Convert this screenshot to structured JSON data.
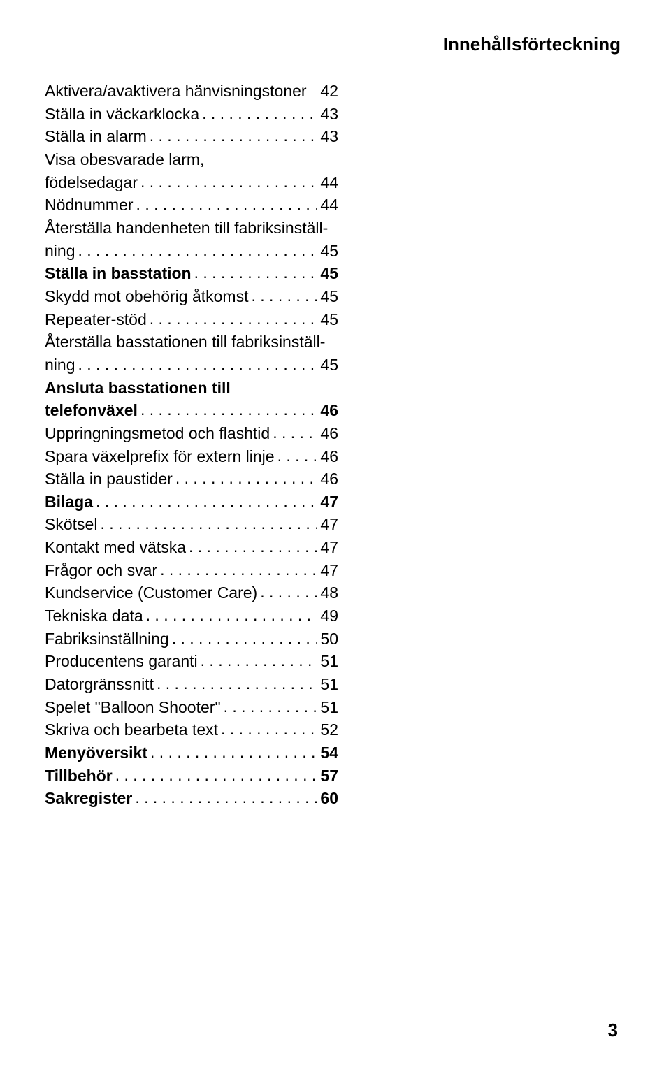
{
  "header": "Innehållsförteckning",
  "pageNumber": "3",
  "toc": [
    {
      "label": "Aktivera/avaktivera hänvisningstoner",
      "page": "42",
      "bold": false,
      "short": true
    },
    {
      "label": "Ställa in väckarklocka",
      "page": "43",
      "bold": false
    },
    {
      "label": "Ställa in alarm",
      "page": "43",
      "bold": false
    },
    {
      "labelLines": [
        "Visa obesvarade larm,",
        "födelsedagar"
      ],
      "page": "44",
      "bold": false
    },
    {
      "label": "Nödnummer",
      "page": "44",
      "bold": false
    },
    {
      "labelLines": [
        "Återställa handenheten till fabriksinställ-",
        "ning"
      ],
      "page": "45",
      "bold": false
    },
    {
      "label": "Ställa in basstation",
      "page": "45",
      "bold": true
    },
    {
      "label": "Skydd mot obehörig åtkomst",
      "page": "45",
      "bold": false
    },
    {
      "label": "Repeater-stöd",
      "page": "45",
      "bold": false
    },
    {
      "labelLines": [
        "Återställa basstationen till fabriksinställ-",
        "ning"
      ],
      "page": "45",
      "bold": false
    },
    {
      "labelLines": [
        "Ansluta basstationen till",
        "telefonväxel"
      ],
      "page": "46",
      "bold": true
    },
    {
      "label": "Uppringningsmetod och flashtid",
      "page": "46",
      "bold": false
    },
    {
      "label": "Spara växelprefix för extern linje",
      "page": "46",
      "bold": false
    },
    {
      "label": "Ställa in paustider",
      "page": "46",
      "bold": false
    },
    {
      "label": "Bilaga",
      "page": "47",
      "bold": true
    },
    {
      "label": "Skötsel",
      "page": "47",
      "bold": false
    },
    {
      "label": "Kontakt med vätska",
      "page": "47",
      "bold": false
    },
    {
      "label": "Frågor och svar",
      "page": "47",
      "bold": false
    },
    {
      "label": "Kundservice (Customer Care)",
      "page": "48",
      "bold": false
    },
    {
      "label": "Tekniska data",
      "page": "49",
      "bold": false
    },
    {
      "label": "Fabriksinställning",
      "page": "50",
      "bold": false
    },
    {
      "label": "Producentens garanti",
      "page": "51",
      "bold": false
    },
    {
      "label": "Datorgränssnitt",
      "page": "51",
      "bold": false
    },
    {
      "label": "Spelet \"Balloon Shooter\"",
      "page": "51",
      "bold": false
    },
    {
      "label": "Skriva och bearbeta text",
      "page": "52",
      "bold": false
    },
    {
      "label": "Menyöversikt",
      "page": "54",
      "bold": true
    },
    {
      "label": "Tillbehör",
      "page": "57",
      "bold": true
    },
    {
      "label": "Sakregister",
      "page": "60",
      "bold": true
    }
  ]
}
